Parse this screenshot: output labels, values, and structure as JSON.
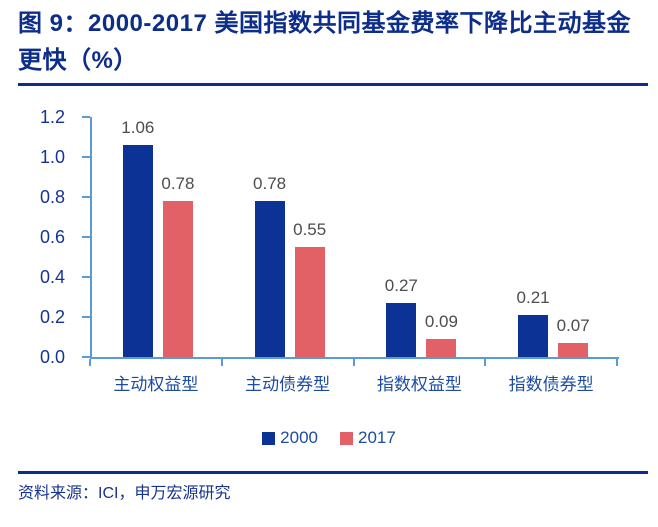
{
  "title": "图 9：2000-2017 美国指数共同基金费率下降比主动基金更快（%）",
  "source": "资料来源：ICI，申万宏源研究",
  "colors": {
    "title_navy": "#0D2D8A",
    "axis_line": "#5B9BD5",
    "tick_label": "#14339A",
    "category_label": "#1E4CA1",
    "data_label": "#4D4D4D",
    "source_text": "#16338E",
    "series_2000": "#0B3294",
    "series_2017": "#E26166"
  },
  "chart_data": {
    "type": "bar",
    "title": "2000-2017 美国指数共同基金费率下降比主动基金更快（%）",
    "categories": [
      "主动权益型",
      "主动债券型",
      "指数权益型",
      "指数债券型"
    ],
    "series": [
      {
        "name": "2000",
        "color": "#0B3294",
        "values": [
          1.06,
          0.78,
          0.27,
          0.21
        ]
      },
      {
        "name": "2017",
        "color": "#E26166",
        "values": [
          0.78,
          0.55,
          0.09,
          0.07
        ]
      }
    ],
    "xlabel": "",
    "ylabel": "",
    "ylim": [
      0.0,
      1.2
    ],
    "y_tick_labels": [
      "1.2",
      "1.0",
      "0.8",
      "0.6",
      "0.4",
      "0.2",
      "0.0"
    ],
    "grid": false,
    "data_labels": true,
    "legend_position": "bottom"
  }
}
